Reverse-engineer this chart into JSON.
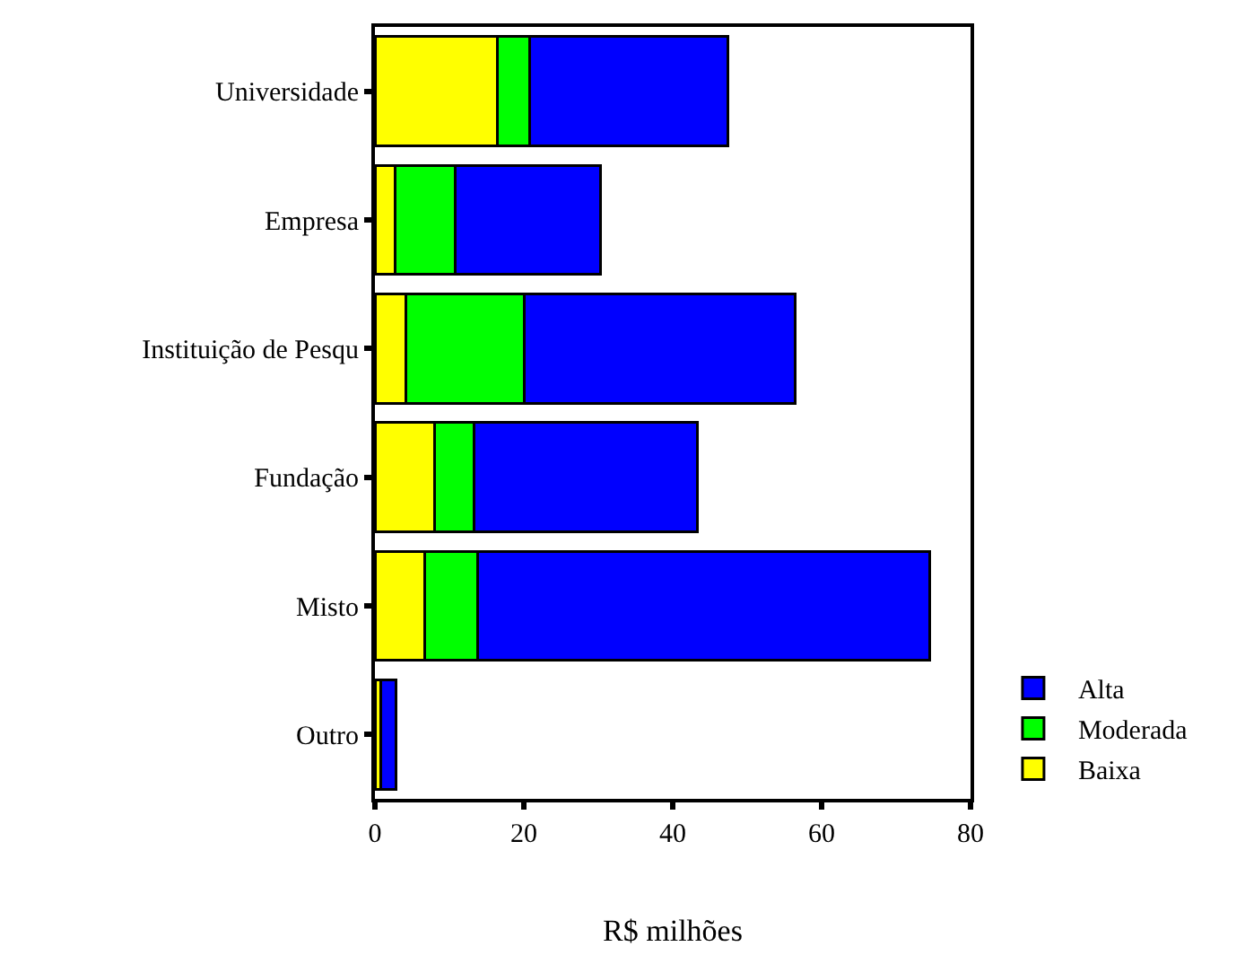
{
  "chart_data": {
    "type": "bar",
    "orientation": "horizontal",
    "stacked": true,
    "categories": [
      "Universidade",
      "Empresa",
      "Instituição de Pesqu",
      "Fundação",
      "Misto",
      "Outro"
    ],
    "series": [
      {
        "name": "Baixa",
        "color": "#ffff00",
        "values": [
          16.5,
          2.7,
          4.2,
          8.0,
          6.7,
          0.8
        ]
      },
      {
        "name": "Moderada",
        "color": "#00ff00",
        "values": [
          4.3,
          8.1,
          15.8,
          5.3,
          7.1,
          0
        ]
      },
      {
        "name": "Alta",
        "color": "#0000ff",
        "values": [
          26.6,
          19.5,
          36.5,
          30.0,
          60.7,
          2.0
        ]
      }
    ],
    "xlim": [
      0,
      80
    ],
    "xticks": [
      0,
      20,
      40,
      60,
      80
    ],
    "xlabel": "R$ milhões",
    "legend": "bottom right"
  }
}
